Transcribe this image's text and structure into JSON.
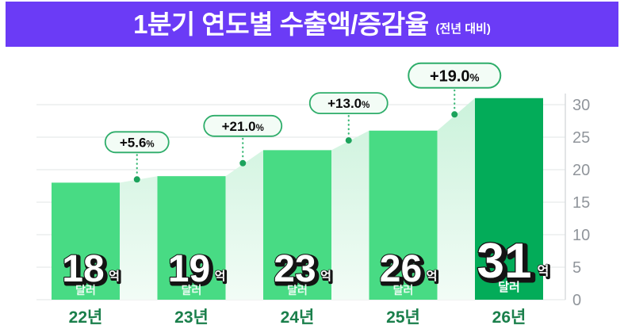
{
  "header": {
    "title": "1분기 연도별 수출액/증감율",
    "suffix": "(전년 대비)"
  },
  "colors": {
    "banner": "#6B3BF6",
    "title_text": "#FFFFFF",
    "bar": "#48DB84",
    "bar_last": "#03AC59",
    "area_top": "#CBF2DB",
    "area_bottom": "#F2FCF6",
    "grid": "#E7E9EB",
    "axis_line": "#D8DBDE",
    "tick_label": "#90959B",
    "year_label": "#1A7F4B",
    "pill_fill": "#F3FCF6",
    "pill_border": "#2EAD6A",
    "pill_text": "#0B0B0B",
    "dot": "#1CA35C",
    "connector": "#3BB876",
    "value_fill": "#FFFFFF",
    "value_outline": "#141414",
    "currency_text": "#E9FBF1"
  },
  "chart_data": {
    "type": "bar",
    "title": "1분기 연도별 수출액/증감율 (전년 대비)",
    "categories": [
      "22년",
      "23년",
      "24년",
      "25년",
      "26년"
    ],
    "values": [
      18,
      19,
      23,
      26,
      31
    ],
    "value_unit": "억",
    "value_currency": "달러",
    "growth_pct": [
      5.6,
      21.0,
      13.0,
      19.0
    ],
    "growth_labels": [
      "+5.6",
      "+21.0",
      "+13.0",
      "+19.0"
    ],
    "percent_sign": "%",
    "y_ticks": [
      0,
      5,
      10,
      15,
      20,
      25,
      30
    ],
    "ylim": [
      0,
      31
    ],
    "grid": "on",
    "y_axis_position": "right",
    "legend": "none"
  }
}
